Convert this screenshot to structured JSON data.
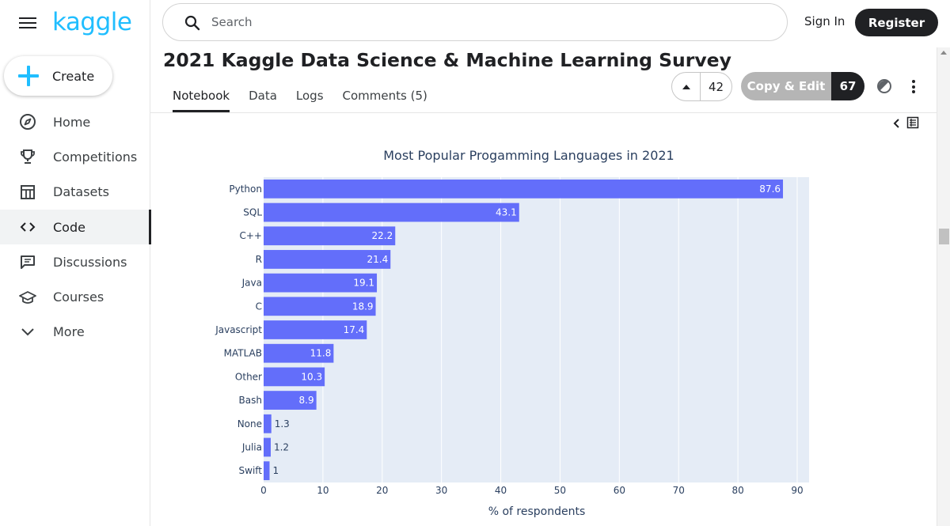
{
  "app": {
    "logo": "kaggle"
  },
  "sidebar": {
    "create_label": "Create",
    "items": [
      {
        "label": "Home",
        "icon": "compass-icon"
      },
      {
        "label": "Competitions",
        "icon": "trophy-icon"
      },
      {
        "label": "Datasets",
        "icon": "table-icon"
      },
      {
        "label": "Code",
        "icon": "code-icon",
        "active": true
      },
      {
        "label": "Discussions",
        "icon": "comments-icon"
      },
      {
        "label": "Courses",
        "icon": "school-icon"
      },
      {
        "label": "More",
        "icon": "chevron-down-icon"
      }
    ]
  },
  "header": {
    "search_placeholder": "Search",
    "signin_label": "Sign In",
    "register_label": "Register"
  },
  "notebook": {
    "title": "2021 Kaggle Data Science & Machine Learning Survey",
    "tabs": [
      {
        "label": "Notebook",
        "active": true
      },
      {
        "label": "Data"
      },
      {
        "label": "Logs"
      },
      {
        "label": "Comments (5)"
      }
    ],
    "upvotes": "42",
    "copy_edit_label": "Copy & Edit",
    "copy_edit_count": "67"
  },
  "colors": {
    "accent": "#20beff",
    "bar": "#636efa",
    "plot_bg": "#e5ecf6",
    "register_bg": "#202124"
  },
  "chart_data": {
    "type": "bar",
    "orientation": "horizontal",
    "title": "Most Popular Progamming Languages in 2021",
    "xlabel": "% of respondents",
    "ylabel": "",
    "categories": [
      "Python",
      "SQL",
      "C++",
      "R",
      "Java",
      "C",
      "Javascript",
      "MATLAB",
      "Other",
      "Bash",
      "None",
      "Julia",
      "Swift"
    ],
    "values": [
      87.6,
      43.1,
      22.2,
      21.4,
      19.1,
      18.9,
      17.4,
      11.8,
      10.3,
      8.9,
      1.3,
      1.2,
      1
    ],
    "value_labels": [
      "87.6",
      "43.1",
      "22.2",
      "21.4",
      "19.1",
      "18.9",
      "17.4",
      "11.8",
      "10.3",
      "8.9",
      "1.3",
      "1.2",
      "1"
    ],
    "xlim": [
      0,
      90
    ],
    "xticks": [
      0,
      10,
      20,
      30,
      40,
      50,
      60,
      70,
      80,
      90
    ],
    "grid": true,
    "legend": "none"
  }
}
